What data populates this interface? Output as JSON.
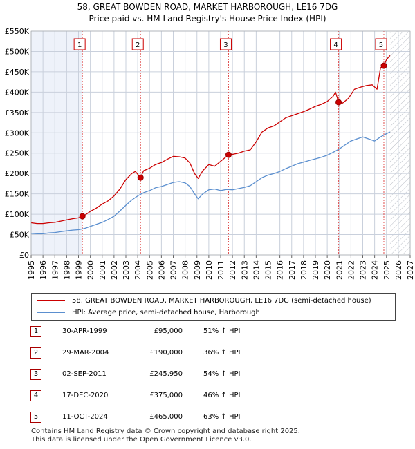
{
  "chart_data": {
    "type": "line",
    "title": "58, GREAT BOWDEN ROAD, MARKET HARBOROUGH, LE16 7DG",
    "subtitle": "Price paid vs. HM Land Registry's House Price Index (HPI)",
    "xlabel": "",
    "ylabel": "",
    "xlim": [
      1995,
      2027
    ],
    "ylim": [
      0,
      550000
    ],
    "y_ticks": [
      {
        "value": 0,
        "label": "£0"
      },
      {
        "value": 50000,
        "label": "£50K"
      },
      {
        "value": 100000,
        "label": "£100K"
      },
      {
        "value": 150000,
        "label": "£150K"
      },
      {
        "value": 200000,
        "label": "£200K"
      },
      {
        "value": 250000,
        "label": "£250K"
      },
      {
        "value": 300000,
        "label": "£300K"
      },
      {
        "value": 350000,
        "label": "£350K"
      },
      {
        "value": 400000,
        "label": "£400K"
      },
      {
        "value": 450000,
        "label": "£450K"
      },
      {
        "value": 500000,
        "label": "£500K"
      },
      {
        "value": 550000,
        "label": "£550K"
      }
    ],
    "x_ticks": [
      "1995",
      "1996",
      "1997",
      "1998",
      "1999",
      "2000",
      "2001",
      "2002",
      "2003",
      "2004",
      "2005",
      "2006",
      "2007",
      "2008",
      "2009",
      "2010",
      "2011",
      "2012",
      "2013",
      "2014",
      "2015",
      "2016",
      "2017",
      "2018",
      "2019",
      "2020",
      "2021",
      "2022",
      "2023",
      "2024",
      "2025",
      "2026",
      "2027"
    ],
    "grid": true,
    "data_end_year": 2025.3,
    "series": [
      {
        "name": "58, GREAT BOWDEN ROAD, MARKET HARBOROUGH, LE16 7DG (semi-detached house)",
        "color": "#cc0000",
        "x": [
          1995.0,
          1995.5,
          1996.0,
          1996.5,
          1997.0,
          1997.5,
          1998.0,
          1998.5,
          1999.0,
          1999.33,
          1999.5,
          2000.0,
          2000.5,
          2001.0,
          2001.5,
          2002.0,
          2002.5,
          2003.0,
          2003.5,
          2003.8,
          2004.24,
          2004.5,
          2005.0,
          2005.5,
          2006.0,
          2006.5,
          2007.0,
          2007.5,
          2008.0,
          2008.4,
          2008.8,
          2009.1,
          2009.5,
          2010.0,
          2010.5,
          2011.0,
          2011.67,
          2012.0,
          2012.5,
          2013.0,
          2013.5,
          2014.0,
          2014.5,
          2015.0,
          2015.5,
          2016.0,
          2016.5,
          2017.0,
          2017.5,
          2018.0,
          2018.5,
          2019.0,
          2019.5,
          2020.0,
          2020.5,
          2020.7,
          2020.96,
          2021.3,
          2021.8,
          2022.3,
          2022.8,
          2023.3,
          2023.8,
          2024.2,
          2024.5,
          2024.78,
          2025.0,
          2025.3
        ],
        "values": [
          79000,
          77000,
          77000,
          79000,
          80000,
          83000,
          86000,
          89000,
          91000,
          95000,
          97000,
          107000,
          115000,
          125000,
          133000,
          145000,
          162000,
          185000,
          200000,
          205000,
          190000,
          207000,
          213000,
          222000,
          227000,
          235000,
          242000,
          241000,
          238000,
          226000,
          200000,
          188000,
          207000,
          222000,
          218000,
          230000,
          245950,
          247000,
          250000,
          255000,
          258000,
          278000,
          302000,
          312000,
          317000,
          327000,
          337000,
          342000,
          347000,
          352000,
          358000,
          365000,
          370000,
          377000,
          390000,
          400000,
          375000,
          373000,
          385000,
          407000,
          412000,
          416000,
          418000,
          407000,
          460000,
          465000,
          480000,
          490000
        ]
      },
      {
        "name": "HPI: Average price, semi-detached house, Harborough",
        "color": "#5b8fcf",
        "x": [
          1995.0,
          1995.5,
          1996.0,
          1996.5,
          1997.0,
          1997.5,
          1998.0,
          1998.5,
          1999.0,
          1999.5,
          2000.0,
          2000.5,
          2001.0,
          2001.5,
          2002.0,
          2002.5,
          2003.0,
          2003.5,
          2004.0,
          2004.5,
          2005.0,
          2005.5,
          2006.0,
          2006.5,
          2007.0,
          2007.5,
          2008.0,
          2008.4,
          2008.8,
          2009.1,
          2009.5,
          2010.0,
          2010.5,
          2011.0,
          2011.5,
          2012.0,
          2012.5,
          2013.0,
          2013.5,
          2014.0,
          2014.5,
          2015.0,
          2015.5,
          2016.0,
          2016.5,
          2017.0,
          2017.5,
          2018.0,
          2018.5,
          2019.0,
          2019.5,
          2020.0,
          2020.5,
          2021.0,
          2021.5,
          2022.0,
          2022.5,
          2023.0,
          2023.5,
          2024.0,
          2024.5,
          2025.0,
          2025.3
        ],
        "values": [
          53000,
          52000,
          52000,
          54000,
          55000,
          57000,
          59000,
          61000,
          62000,
          65000,
          70000,
          75000,
          80000,
          87000,
          95000,
          108000,
          122000,
          135000,
          145000,
          153000,
          158000,
          165000,
          168000,
          173000,
          178000,
          180000,
          177000,
          168000,
          150000,
          138000,
          150000,
          160000,
          162000,
          158000,
          161000,
          160000,
          163000,
          166000,
          170000,
          180000,
          190000,
          196000,
          200000,
          205000,
          212000,
          218000,
          224000,
          228000,
          232000,
          236000,
          240000,
          245000,
          252000,
          260000,
          270000,
          280000,
          285000,
          290000,
          285000,
          280000,
          290000,
          298000,
          302000
        ]
      }
    ],
    "sales": [
      {
        "id": "1",
        "x": 1999.33,
        "price": 95000
      },
      {
        "id": "2",
        "x": 2004.24,
        "price": 190000
      },
      {
        "id": "3",
        "x": 2011.67,
        "price": 245950
      },
      {
        "id": "4",
        "x": 2020.96,
        "price": 375000
      },
      {
        "id": "5",
        "x": 2024.78,
        "price": 465000
      }
    ]
  },
  "legend": {
    "property_label": "58, GREAT BOWDEN ROAD, MARKET HARBOROUGH, LE16 7DG (semi-detached house)",
    "hpi_label": "HPI: Average price, semi-detached house, Harborough"
  },
  "transactions": [
    {
      "num": "1",
      "date": "30-APR-1999",
      "price": "£95,000",
      "hpi": "51% ↑ HPI"
    },
    {
      "num": "2",
      "date": "29-MAR-2004",
      "price": "£190,000",
      "hpi": "36% ↑ HPI"
    },
    {
      "num": "3",
      "date": "02-SEP-2011",
      "price": "£245,950",
      "hpi": "54% ↑ HPI"
    },
    {
      "num": "4",
      "date": "17-DEC-2020",
      "price": "£375,000",
      "hpi": "46% ↑ HPI"
    },
    {
      "num": "5",
      "date": "11-OCT-2024",
      "price": "£465,000",
      "hpi": "63% ↑ HPI"
    }
  ],
  "footer": {
    "line1": "Contains HM Land Registry data © Crown copyright and database right 2025.",
    "line2": "This data is licensed under the Open Government Licence v3.0."
  }
}
